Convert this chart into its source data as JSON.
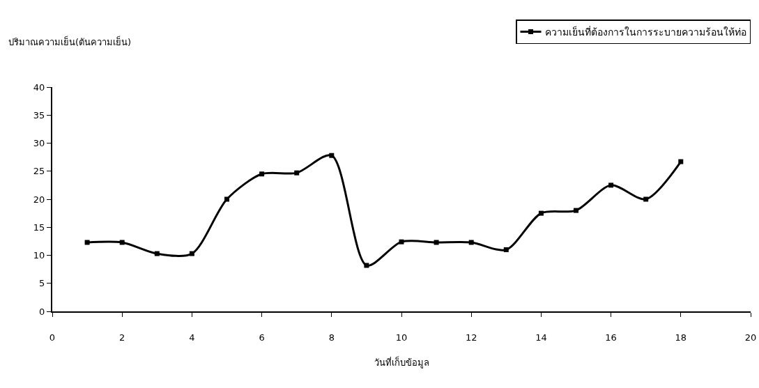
{
  "chart_data": {
    "type": "line",
    "ylabel": "ปริมาณความเย็น(ตันความเย็น)",
    "xlabel": "วันที่เก็บข้อมูล",
    "x": [
      1,
      2,
      3,
      4,
      5,
      6,
      7,
      8,
      9,
      10,
      11,
      12,
      13,
      14,
      15,
      16,
      17,
      18
    ],
    "series": [
      {
        "name": "ความเย็นที่ต้องการในการระบายความร้อนให้ท่อ",
        "color": "#000000",
        "values": [
          12.3,
          12.3,
          10.3,
          10.3,
          20,
          24.5,
          24.7,
          27.8,
          8.2,
          12.4,
          12.3,
          12.3,
          11,
          17.5,
          18,
          22.5,
          20,
          26.7
        ]
      }
    ],
    "xlim": [
      0,
      20
    ],
    "xticks": [
      0,
      2,
      4,
      6,
      8,
      10,
      12,
      14,
      16,
      18,
      20
    ],
    "ylim": [
      0,
      40
    ],
    "yticks": [
      0,
      5,
      10,
      15,
      20,
      25,
      30,
      35,
      40
    ],
    "grid": false,
    "legend": "top right",
    "marker": "square",
    "line_style": "solid"
  }
}
